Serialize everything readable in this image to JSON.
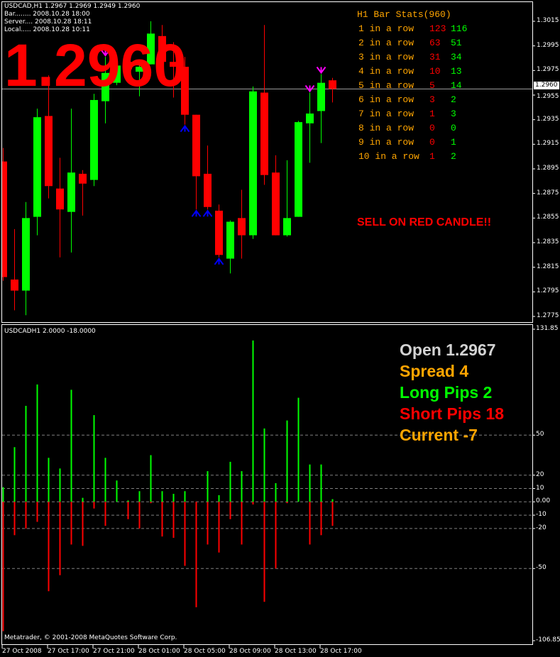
{
  "header": {
    "symbol_line": "USDCAD,H1  1.2967 1.2969 1.2949 1.2960",
    "bar_line": "Bar........ 2008.10.28 18:00",
    "server_line": "Server.... 2008.10.28 18:11",
    "local_line": "Local..... 2008.10.28 10:11"
  },
  "big_price": "1.2960",
  "current_price_tag": "1.2960",
  "signal_text": "SELL ON RED CANDLE!!",
  "stats": {
    "title": "H1 Bar Stats(960)",
    "rows": [
      {
        "label": "1 in a row",
        "red": "123",
        "green": "116"
      },
      {
        "label": "2 in a row",
        "red": "63",
        "green": "51"
      },
      {
        "label": "3 in a row",
        "red": "31",
        "green": "34"
      },
      {
        "label": "4 in a row",
        "red": "10",
        "green": "13"
      },
      {
        "label": "5 in a row",
        "red": "5",
        "green": "14"
      },
      {
        "label": "6 in a row",
        "red": "3",
        "green": "2"
      },
      {
        "label": "7 in a row",
        "red": "1",
        "green": "3"
      },
      {
        "label": "8 in a row",
        "red": "0",
        "green": "0"
      },
      {
        "label": "9 in a row",
        "red": "0",
        "green": "1"
      },
      {
        "label": "10 in a row",
        "red": "1",
        "green": "2"
      }
    ]
  },
  "indicator_title": "USDCADH1 2.0000 -18.0000",
  "indicator_panel": {
    "open": "Open 1.2967",
    "spread": "Spread 4",
    "long_pips": "Long Pips 2",
    "short_pips": "Short Pips 18",
    "current": "Current -7"
  },
  "copyright": "Metatrader, © 2001-2008 MetaQuotes Software Corp.",
  "colors": {
    "bull": "#00ff00",
    "bear": "#ff0000",
    "stats_label": "#ffa500",
    "open_text": "#d3d3d3",
    "up_arrow": "#0000ff",
    "down_arrow": "#ff00ff",
    "grid": "#808080"
  },
  "chart_data": [
    {
      "type": "candlestick",
      "symbol": "USDCAD,H1",
      "ylim": [
        1.2765,
        1.3025
      ],
      "y_ticks": [
        "1.3015",
        "1.2995",
        "1.2975",
        "1.2955",
        "1.2935",
        "1.2915",
        "1.2895",
        "1.2875",
        "1.2855",
        "1.2835",
        "1.2815",
        "1.2795",
        "1.2775"
      ],
      "x_ticks": [
        "27 Oct 2008",
        "27 Oct 17:00",
        "27 Oct 21:00",
        "28 Oct 01:00",
        "28 Oct 05:00",
        "28 Oct 09:00",
        "28 Oct 13:00",
        "28 Oct 17:00"
      ],
      "current_price": 1.296,
      "ohlc": [
        [
          1.2901,
          1.2912,
          1.2804,
          1.2807
        ],
        [
          1.2805,
          1.2846,
          1.278,
          1.2796
        ],
        [
          1.2796,
          1.2868,
          1.2776,
          1.2855
        ],
        [
          1.2856,
          1.2944,
          1.2841,
          1.2937
        ],
        [
          1.2938,
          1.2971,
          1.2871,
          1.2881
        ],
        [
          1.2879,
          1.2904,
          1.2823,
          1.2862
        ],
        [
          1.286,
          1.2944,
          1.2827,
          1.2892
        ],
        [
          1.2891,
          1.2894,
          1.2857,
          1.2883
        ],
        [
          1.2886,
          1.2956,
          1.2881,
          1.2951
        ],
        [
          1.295,
          1.2986,
          1.2932,
          1.2973
        ],
        [
          1.2965,
          1.2983,
          1.2963,
          1.2979
        ],
        [
          1.2982,
          1.2986,
          1.297,
          1.2976
        ],
        [
          1.2974,
          1.2983,
          1.2954,
          1.2978
        ],
        [
          1.298,
          1.3015,
          1.298,
          1.3005
        ],
        [
          1.3003,
          1.3012,
          1.2977,
          1.2982
        ],
        [
          1.2982,
          1.2998,
          1.2953,
          1.2978
        ],
        [
          1.2978,
          1.2986,
          1.2931,
          1.2939
        ],
        [
          1.2939,
          1.2939,
          1.2862,
          1.2889
        ],
        [
          1.2891,
          1.2914,
          1.2862,
          1.2864
        ],
        [
          1.2861,
          1.2866,
          1.2823,
          1.2825
        ],
        [
          1.2822,
          1.2853,
          1.281,
          1.2852
        ],
        [
          1.2855,
          1.2878,
          1.2822,
          1.2841
        ],
        [
          1.2841,
          1.2962,
          1.2838,
          1.2958
        ],
        [
          1.2957,
          1.3012,
          1.2882,
          1.289
        ],
        [
          1.2892,
          1.2906,
          1.2841,
          1.2841
        ],
        [
          1.2841,
          1.2902,
          1.284,
          1.2855
        ],
        [
          1.2856,
          1.2934,
          1.2856,
          1.2933
        ],
        [
          1.2932,
          1.2957,
          1.29,
          1.294
        ],
        [
          1.2942,
          1.2972,
          1.2916,
          1.2965
        ],
        [
          1.2967,
          1.2969,
          1.2949,
          1.296
        ]
      ],
      "up_arrows_at": [
        16,
        17,
        18,
        19
      ],
      "down_arrows_at": [
        9,
        27,
        28
      ]
    },
    {
      "type": "bar",
      "title": "USDCADH1 2.0000 -18.0000",
      "ylim": [
        -106.85,
        131.85
      ],
      "y_ticks": [
        "131.85",
        "50",
        "20",
        "10",
        "0.00",
        "-10",
        "-20",
        "-50",
        "-106.85"
      ],
      "grid_levels": [
        50,
        20,
        10,
        0,
        -10,
        -20,
        -50
      ],
      "series": [
        {
          "values": [
            11,
            41,
            72,
            88,
            33,
            25,
            84,
            3,
            65,
            33,
            16,
            1,
            8,
            35,
            8,
            6,
            8,
            0,
            23,
            5,
            30,
            23,
            121,
            55,
            14,
            61,
            78,
            28,
            28,
            2
          ]
        },
        {
          "values": [
            -97,
            -25,
            -20,
            -15,
            -67,
            -55,
            -32,
            -33,
            -5,
            -18,
            0,
            -13,
            -20,
            -1,
            -26,
            -27,
            -48,
            -79,
            -32,
            -38,
            -13,
            -32,
            -2,
            -75,
            -50,
            -1,
            0,
            -32,
            -25,
            -18
          ]
        }
      ]
    }
  ]
}
